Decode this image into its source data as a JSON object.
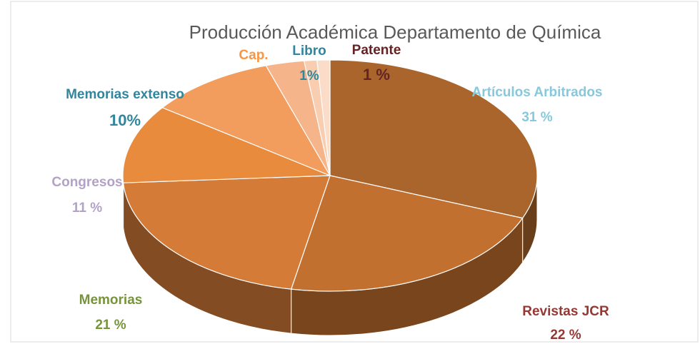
{
  "chart_data": {
    "type": "pie3d",
    "title": "Producción Académica Departamento de Química",
    "categories": [
      "Artículos Arbitrados",
      "Revistas JCR",
      "Memorias",
      "Congresos",
      "Memorias extenso",
      "Cap.",
      "Libro",
      "Patente"
    ],
    "values": [
      31,
      22,
      21,
      11,
      10,
      3,
      1,
      1
    ],
    "value_labels": [
      "31 %",
      "22 %",
      "21 %",
      "11 %",
      "10%",
      null,
      "1%",
      "1 %"
    ],
    "colors": [
      "#a9652c",
      "#c2702f",
      "#d47b38",
      "#e88b3c",
      "#f29d5e",
      "#f5b48a",
      "#f8cdb0",
      "#fadcc8"
    ],
    "label_colors": [
      "#86c9dd",
      "#953735",
      "#77933c",
      "#b3a2c7",
      "#31859c",
      "#f79646",
      "#31859c",
      "#632423"
    ]
  }
}
